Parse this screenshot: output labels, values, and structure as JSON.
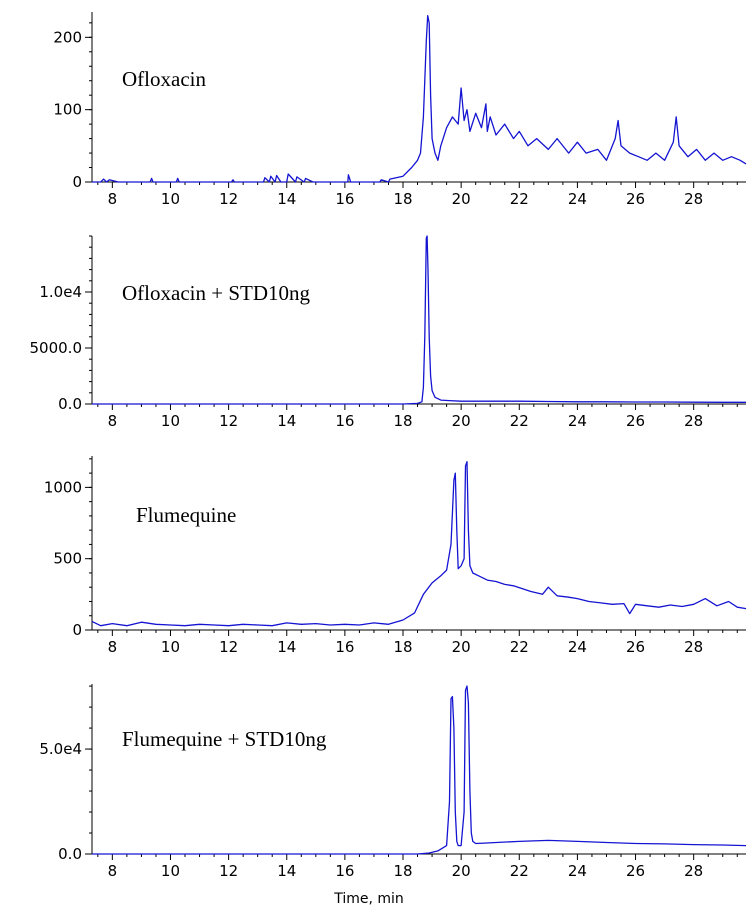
{
  "chart_data": [
    {
      "type": "line",
      "annotation": "Ofloxacin",
      "xlim": [
        7.3,
        29.8
      ],
      "ylim": [
        0,
        235
      ],
      "xticks": [
        8,
        10,
        12,
        14,
        16,
        18,
        20,
        22,
        24,
        26,
        28
      ],
      "x_tick_labels": [
        "8",
        "10",
        "12",
        "14",
        "16",
        "18",
        "20",
        "22",
        "24",
        "26",
        "28"
      ],
      "yticks": [
        0,
        100,
        200
      ],
      "y_tick_labels": [
        "0",
        "100",
        "200"
      ],
      "line_color": "#1414d2",
      "series": [
        {
          "x": [
            7.3,
            7.6,
            7.7,
            7.8,
            7.9,
            8.2,
            9.3,
            9.35,
            9.4,
            10.2,
            10.25,
            10.3,
            12.1,
            12.15,
            12.2,
            13.2,
            13.25,
            13.4,
            13.45,
            13.6,
            13.65,
            13.8,
            14.0,
            14.05,
            14.3,
            14.35,
            14.6,
            14.65,
            14.9,
            16.1,
            16.12,
            16.2,
            17.2,
            17.25,
            17.5,
            17.55,
            18.0,
            18.3,
            18.5,
            18.6,
            18.7,
            18.8,
            18.85,
            18.9,
            18.95,
            19.0,
            19.1,
            19.2,
            19.3,
            19.5,
            19.7,
            19.9,
            20.0,
            20.1,
            20.2,
            20.3,
            20.5,
            20.7,
            20.85,
            20.9,
            21.0,
            21.2,
            21.5,
            21.8,
            22.0,
            22.3,
            22.6,
            23.0,
            23.3,
            23.7,
            24.0,
            24.3,
            24.7,
            25.0,
            25.3,
            25.4,
            25.5,
            25.8,
            26.1,
            26.4,
            26.7,
            27.0,
            27.3,
            27.4,
            27.5,
            27.8,
            28.1,
            28.4,
            28.7,
            29.0,
            29.3,
            29.6,
            29.8
          ],
          "y": [
            0,
            0,
            4,
            0,
            3,
            0,
            0,
            5,
            0,
            0,
            5,
            0,
            0,
            3,
            0,
            0,
            6,
            0,
            8,
            0,
            9,
            0,
            0,
            11,
            0,
            7,
            0,
            5,
            0,
            0,
            10,
            0,
            0,
            3,
            0,
            4,
            8,
            20,
            30,
            40,
            90,
            195,
            230,
            220,
            120,
            60,
            40,
            30,
            50,
            75,
            90,
            80,
            130,
            85,
            100,
            70,
            95,
            75,
            108,
            70,
            90,
            65,
            80,
            60,
            70,
            50,
            60,
            45,
            60,
            40,
            55,
            40,
            45,
            30,
            60,
            85,
            50,
            40,
            35,
            30,
            40,
            30,
            55,
            90,
            50,
            35,
            45,
            30,
            40,
            30,
            35,
            30,
            25
          ]
        }
      ]
    },
    {
      "type": "line",
      "annotation": "Ofloxacin + STD10ng",
      "xlim": [
        7.3,
        29.8
      ],
      "ylim": [
        0,
        15000
      ],
      "xticks": [
        8,
        10,
        12,
        14,
        16,
        18,
        20,
        22,
        24,
        26,
        28
      ],
      "x_tick_labels": [
        "8",
        "10",
        "12",
        "14",
        "16",
        "18",
        "20",
        "22",
        "24",
        "26",
        "28"
      ],
      "yticks": [
        0,
        5000,
        10000
      ],
      "y_tick_labels": [
        "0.0",
        "5000.0",
        "1.0e4"
      ],
      "line_color": "#1414d2",
      "series": [
        {
          "x": [
            7.3,
            18.0,
            18.5,
            18.65,
            18.7,
            18.75,
            18.8,
            18.83,
            18.86,
            18.9,
            18.95,
            19.0,
            19.1,
            19.3,
            19.6,
            20.0,
            21.0,
            22.0,
            23.0,
            24.0,
            25.0,
            26.0,
            27.0,
            28.0,
            29.0,
            29.8
          ],
          "y": [
            0,
            0,
            50,
            200,
            1500,
            6000,
            14800,
            15000,
            12000,
            6000,
            2500,
            1200,
            600,
            350,
            300,
            250,
            250,
            250,
            220,
            200,
            200,
            180,
            180,
            160,
            150,
            150
          ]
        }
      ]
    },
    {
      "type": "line",
      "annotation": "Flumequine",
      "xlim": [
        7.3,
        29.8
      ],
      "ylim": [
        0,
        1220
      ],
      "xticks": [
        8,
        10,
        12,
        14,
        16,
        18,
        20,
        22,
        24,
        26,
        28
      ],
      "x_tick_labels": [
        "8",
        "10",
        "12",
        "14",
        "16",
        "18",
        "20",
        "22",
        "24",
        "26",
        "28"
      ],
      "yticks": [
        0,
        500,
        1000
      ],
      "y_tick_labels": [
        "0",
        "500",
        "1000"
      ],
      "line_color": "#1414d2",
      "series": [
        {
          "x": [
            7.3,
            7.6,
            8.0,
            8.5,
            9.0,
            9.5,
            10.0,
            10.5,
            11.0,
            11.5,
            12.0,
            12.5,
            13.0,
            13.5,
            14.0,
            14.5,
            15.0,
            15.5,
            16.0,
            16.5,
            17.0,
            17.5,
            18.0,
            18.4,
            18.7,
            19.0,
            19.3,
            19.5,
            19.65,
            19.75,
            19.8,
            19.85,
            19.9,
            20.0,
            20.1,
            20.15,
            20.2,
            20.25,
            20.3,
            20.4,
            20.6,
            20.9,
            21.2,
            21.5,
            21.8,
            22.1,
            22.4,
            22.8,
            23.0,
            23.3,
            23.7,
            24.0,
            24.4,
            24.8,
            25.2,
            25.6,
            25.8,
            26.0,
            26.4,
            26.8,
            27.2,
            27.6,
            28.0,
            28.4,
            28.8,
            29.2,
            29.5,
            29.8
          ],
          "y": [
            60,
            30,
            45,
            30,
            55,
            40,
            35,
            30,
            40,
            35,
            30,
            40,
            35,
            30,
            50,
            40,
            45,
            35,
            40,
            35,
            50,
            40,
            70,
            120,
            250,
            330,
            380,
            420,
            600,
            1050,
            1100,
            700,
            430,
            450,
            500,
            1150,
            1180,
            700,
            450,
            400,
            380,
            350,
            340,
            320,
            310,
            290,
            270,
            250,
            300,
            240,
            230,
            220,
            200,
            190,
            180,
            185,
            115,
            180,
            170,
            160,
            175,
            165,
            180,
            220,
            170,
            200,
            160,
            150
          ]
        }
      ]
    },
    {
      "type": "line",
      "annotation": "Flumequine + STD10ng",
      "xlim": [
        7.3,
        29.8
      ],
      "ylim": [
        0,
        81000
      ],
      "xticks": [
        8,
        10,
        12,
        14,
        16,
        18,
        20,
        22,
        24,
        26,
        28
      ],
      "x_tick_labels": [
        "8",
        "10",
        "12",
        "14",
        "16",
        "18",
        "20",
        "22",
        "24",
        "26",
        "28"
      ],
      "yticks": [
        0,
        50000
      ],
      "y_tick_labels": [
        "0.0",
        "5.0e4"
      ],
      "xlabel": "Time, min",
      "line_color": "#1414d2",
      "series": [
        {
          "x": [
            7.3,
            18.5,
            18.9,
            19.2,
            19.5,
            19.6,
            19.65,
            19.7,
            19.75,
            19.8,
            19.85,
            19.9,
            20.0,
            20.1,
            20.15,
            20.2,
            20.25,
            20.3,
            20.35,
            20.4,
            20.5,
            20.8,
            21.2,
            22.0,
            23.0,
            24.0,
            25.0,
            26.0,
            27.0,
            28.0,
            29.0,
            29.8
          ],
          "y": [
            0,
            0,
            500,
            1500,
            4000,
            25000,
            74000,
            75000,
            60000,
            20000,
            6000,
            4000,
            4000,
            20000,
            78000,
            80000,
            72000,
            30000,
            10000,
            6000,
            5000,
            5200,
            5500,
            6000,
            6500,
            6000,
            5500,
            5000,
            4800,
            4500,
            4300,
            4000
          ]
        }
      ]
    }
  ]
}
